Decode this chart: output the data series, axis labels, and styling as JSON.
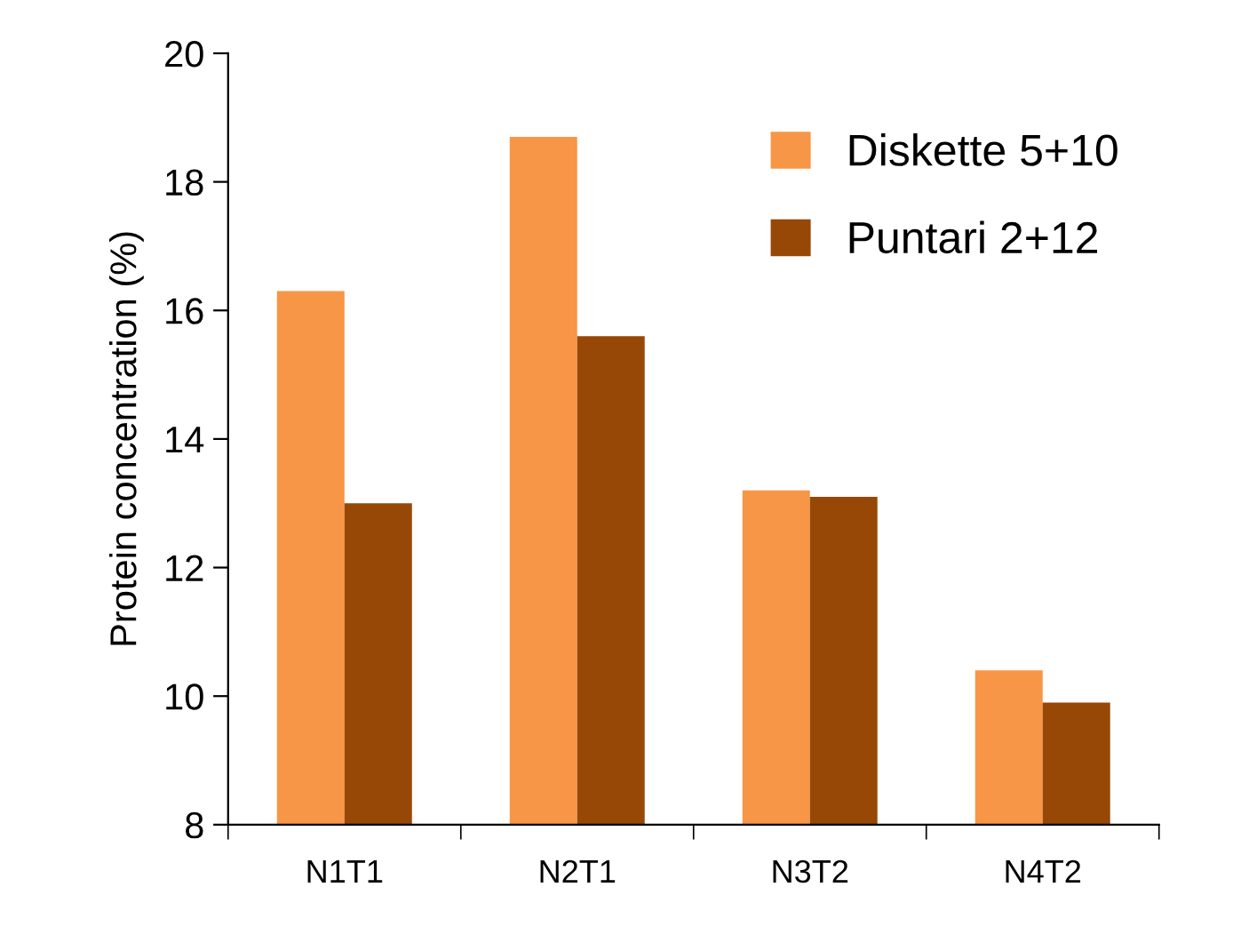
{
  "chart_data": {
    "type": "bar",
    "ylabel": "Protein concentration (%)",
    "categories": [
      "N1T1",
      "N2T1",
      "N3T2",
      "N4T2"
    ],
    "series": [
      {
        "name": "Diskette 5+10",
        "color": "#f79646",
        "values": [
          16.3,
          18.7,
          13.2,
          10.4
        ]
      },
      {
        "name": "Puntari 2+12",
        "color": "#974706",
        "values": [
          13.0,
          15.6,
          13.1,
          9.9
        ]
      }
    ],
    "ylim": [
      8,
      20
    ],
    "yticks": [
      8,
      10,
      12,
      14,
      16,
      18,
      20
    ],
    "grid": false,
    "legend": "top right"
  }
}
